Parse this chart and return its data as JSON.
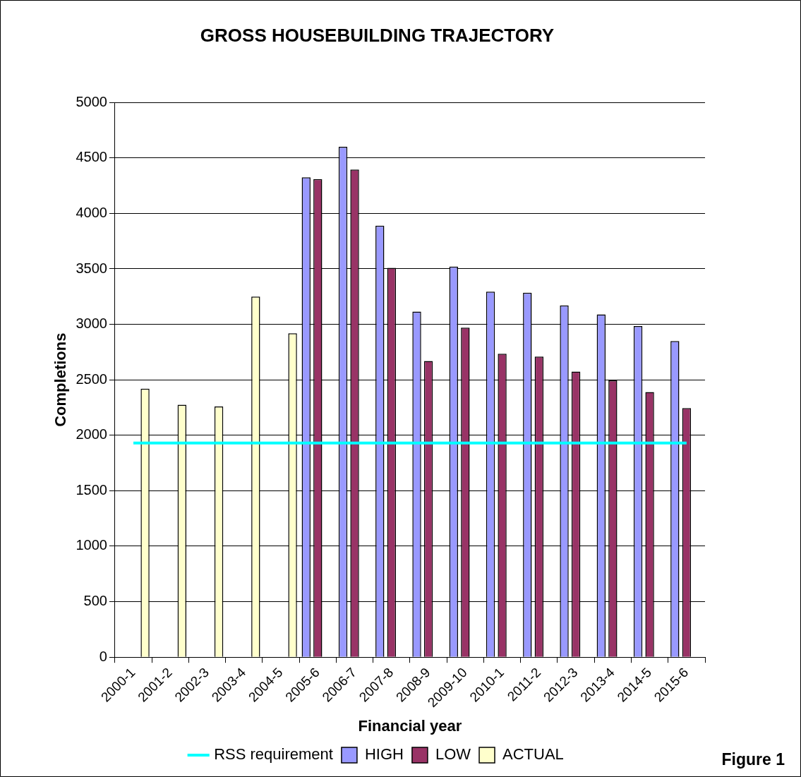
{
  "chart_data": {
    "type": "bar",
    "title": "GROSS HOUSEBUILDING TRAJECTORY",
    "xlabel": "Financial year",
    "ylabel": "Completions",
    "categories": [
      "2000-1",
      "2001-2",
      "2002-3",
      "2003-4",
      "2004-5",
      "2005-6",
      "2006-7",
      "2007-8",
      "2008-9",
      "2009-10",
      "2010-1",
      "2011-2",
      "2012-3",
      "2013-4",
      "2014-5",
      "2015-6"
    ],
    "series": [
      {
        "name": "HIGH",
        "color": "#9999ff",
        "values": [
          null,
          null,
          null,
          null,
          null,
          4325,
          4600,
          3890,
          3115,
          3520,
          3295,
          3285,
          3170,
          3090,
          2985,
          2850
        ]
      },
      {
        "name": "LOW",
        "color": "#993366",
        "values": [
          null,
          null,
          null,
          null,
          null,
          4310,
          4395,
          3510,
          2670,
          2970,
          2735,
          2710,
          2575,
          2495,
          2390,
          2245
        ]
      },
      {
        "name": "ACTUAL",
        "color": "#ffffcc",
        "values": [
          2420,
          2275,
          2260,
          3250,
          2920,
          null,
          null,
          null,
          null,
          null,
          null,
          null,
          null,
          null,
          null,
          null
        ]
      },
      {
        "name": "RSS requirement",
        "type": "line",
        "color": "#00ffff",
        "values": [
          1930,
          1930,
          1930,
          1930,
          1930,
          1930,
          1930,
          1930,
          1930,
          1930,
          1930,
          1930,
          1930,
          1930,
          1930,
          1930
        ]
      }
    ],
    "ylim": [
      0,
      5000
    ],
    "yticks": [
      0,
      500,
      1000,
      1500,
      2000,
      2500,
      3000,
      3500,
      4000,
      4500,
      5000
    ],
    "grid": "y",
    "legend": "bottom",
    "marker": "none",
    "annotations": [
      "Figure 1"
    ]
  }
}
